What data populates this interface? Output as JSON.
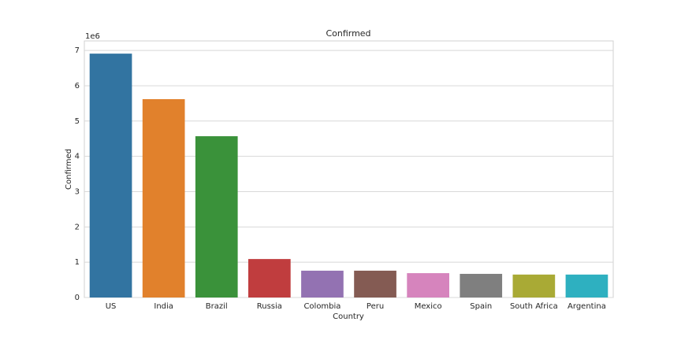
{
  "chart_data": {
    "type": "bar",
    "title": "Confirmed",
    "x_label": "Country",
    "y_label": "Confirmed",
    "y_offset_label": "1e6",
    "categories": [
      "US",
      "India",
      "Brazil",
      "Russia",
      "Colombia",
      "Peru",
      "Mexico",
      "Spain",
      "South Africa",
      "Argentina"
    ],
    "values": [
      6.91,
      5.62,
      4.57,
      1.09,
      0.76,
      0.76,
      0.69,
      0.67,
      0.65,
      0.65
    ],
    "colors": [
      "#3274a1",
      "#e1812c",
      "#3a923a",
      "#c03d3e",
      "#9372b2",
      "#845b53",
      "#d684bd",
      "#7f7f7f",
      "#a9aa35",
      "#2eb0c0"
    ],
    "ylim": [
      0,
      7.27
    ],
    "yticks": [
      0,
      1,
      2,
      3,
      4,
      5,
      6,
      7
    ],
    "grid": true
  }
}
